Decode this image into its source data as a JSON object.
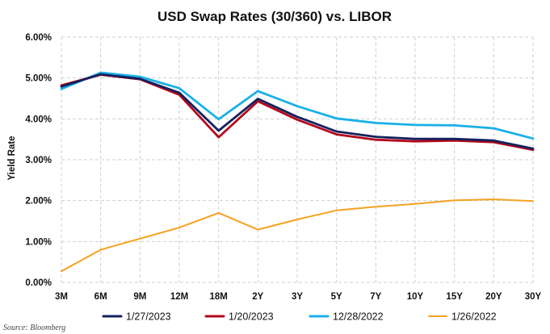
{
  "chart_data": {
    "type": "line",
    "title": "USD Swap Rates (30/360) vs. LIBOR",
    "xlabel": "",
    "ylabel": "Yield Rate",
    "categories": [
      "3M",
      "6M",
      "9M",
      "12M",
      "18M",
      "2Y",
      "3Y",
      "5Y",
      "7Y",
      "10Y",
      "15Y",
      "20Y",
      "30Y"
    ],
    "ylim": [
      0,
      6
    ],
    "y_ticks": [
      0,
      1,
      2,
      3,
      4,
      5,
      6
    ],
    "y_tick_labels": [
      "0.00%",
      "1.00%",
      "2.00%",
      "3.00%",
      "4.00%",
      "5.00%",
      "6.00%"
    ],
    "y_unit": "percent",
    "grid": true,
    "legend_position": "bottom",
    "series": [
      {
        "name": "1/27/2023",
        "color": "#14215e",
        "values": [
          4.79,
          5.09,
          4.98,
          4.64,
          3.71,
          4.49,
          4.05,
          3.69,
          3.56,
          3.51,
          3.51,
          3.47,
          3.27
        ]
      },
      {
        "name": "1/20/2023",
        "color": "#b3071b",
        "values": [
          4.82,
          5.08,
          4.97,
          4.59,
          3.55,
          4.43,
          3.98,
          3.62,
          3.49,
          3.45,
          3.47,
          3.43,
          3.24
        ]
      },
      {
        "name": "12/28/2022",
        "color": "#19b0e6",
        "values": [
          4.73,
          5.13,
          5.03,
          4.75,
          3.99,
          4.68,
          4.31,
          4.01,
          3.9,
          3.85,
          3.84,
          3.77,
          3.52
        ]
      },
      {
        "name": "1/26/2022",
        "color": "#f6a11f",
        "values": [
          0.27,
          0.8,
          1.07,
          1.34,
          1.7,
          1.29,
          1.54,
          1.76,
          1.85,
          1.92,
          2.01,
          2.03,
          1.99
        ]
      }
    ],
    "annotations": [
      "Source: Bloomberg"
    ]
  }
}
